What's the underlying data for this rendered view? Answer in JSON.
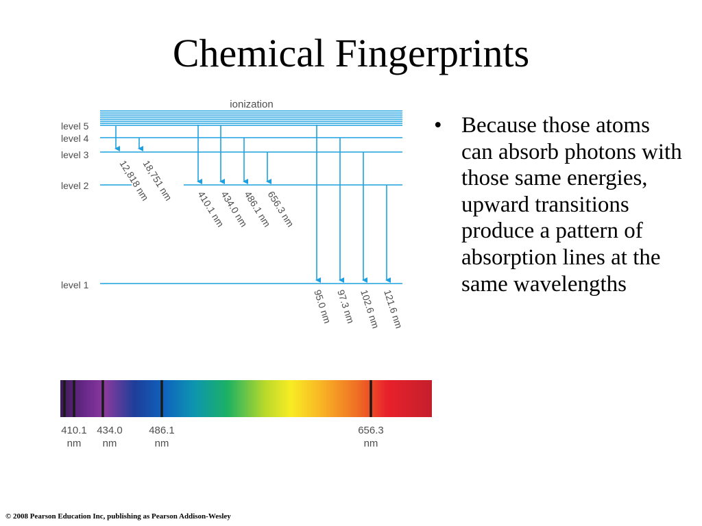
{
  "slide": {
    "title": "Chemical Fingerprints",
    "bullet": "Because those atoms can absorb photons with those same energies, upward transitions produce a pattern of absorption lines at the same wavelengths",
    "copyright": "© 2008 Pearson Education Inc, publishing as Pearson Addison-Wesley"
  },
  "diagram": {
    "ionization_label": "ionization",
    "levels": [
      "level 5",
      "level 4",
      "level 3",
      "level 2",
      "level 1"
    ],
    "transitions": {
      "to_level3": [
        "12,818 nm",
        "18,751 nm"
      ],
      "to_level2": [
        "410.1 nm",
        "434.0 nm",
        "486.1 nm",
        "656.3 nm"
      ],
      "to_level1": [
        "95.0 nm",
        "97.3 nm",
        "102.6 nm",
        "121.6 nm"
      ]
    },
    "spectrum_labels": [
      {
        "value": "410.1",
        "unit": "nm"
      },
      {
        "value": "434.0",
        "unit": "nm"
      },
      {
        "value": "486.1",
        "unit": "nm"
      },
      {
        "value": "656.3",
        "unit": "nm"
      }
    ],
    "colors": {
      "line": "#1ba1e2",
      "label": "#4d4d4d"
    }
  }
}
